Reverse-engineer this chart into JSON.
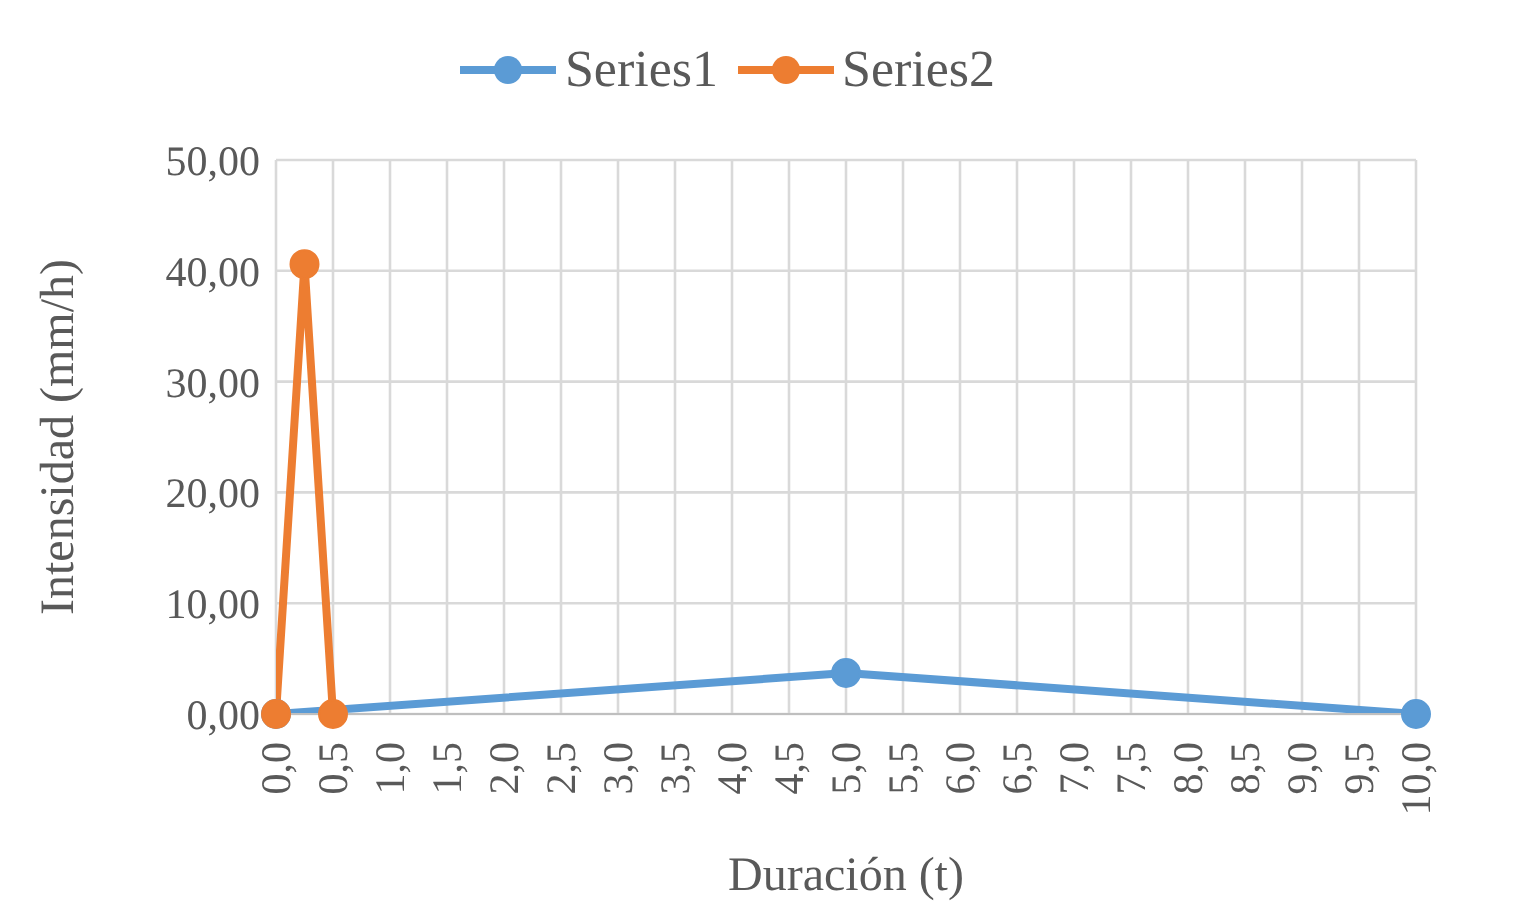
{
  "chart_data": {
    "type": "line",
    "xlabel": "Duración (t)",
    "ylabel": "Intensidad (mm/h)",
    "series": [
      {
        "name": "Series1",
        "color": "#5b9bd5",
        "x": [
          0,
          5,
          10
        ],
        "values": [
          0,
          3.7,
          0
        ]
      },
      {
        "name": "Series2",
        "color": "#ed7d31",
        "x": [
          0,
          0.25,
          0.5
        ],
        "values": [
          0,
          40.6,
          0
        ]
      }
    ],
    "xlim": [
      0,
      10
    ],
    "xticks": [
      {
        "value": 0,
        "label": "0,0"
      },
      {
        "value": 0.5,
        "label": "0,5"
      },
      {
        "value": 1,
        "label": "1,0"
      },
      {
        "value": 1.5,
        "label": "1,5"
      },
      {
        "value": 2,
        "label": "2,0"
      },
      {
        "value": 2.5,
        "label": "2,5"
      },
      {
        "value": 3,
        "label": "3,0"
      },
      {
        "value": 3.5,
        "label": "3,5"
      },
      {
        "value": 4,
        "label": "4,0"
      },
      {
        "value": 4.5,
        "label": "4,5"
      },
      {
        "value": 5,
        "label": "5,0"
      },
      {
        "value": 5.5,
        "label": "5,5"
      },
      {
        "value": 6,
        "label": "6,0"
      },
      {
        "value": 6.5,
        "label": "6,5"
      },
      {
        "value": 7,
        "label": "7,0"
      },
      {
        "value": 7.5,
        "label": "7,5"
      },
      {
        "value": 8,
        "label": "8,0"
      },
      {
        "value": 8.5,
        "label": "8,5"
      },
      {
        "value": 9,
        "label": "9,0"
      },
      {
        "value": 9.5,
        "label": "9,5"
      },
      {
        "value": 10,
        "label": "10,0"
      }
    ],
    "ylim": [
      0,
      50
    ],
    "yticks": [
      {
        "value": 0,
        "label": "0,00"
      },
      {
        "value": 10,
        "label": "10,00"
      },
      {
        "value": 20,
        "label": "20,00"
      },
      {
        "value": 30,
        "label": "30,00"
      },
      {
        "value": 40,
        "label": "40,00"
      },
      {
        "value": 50,
        "label": "50,00"
      }
    ],
    "grid": true,
    "legend": "top",
    "marker": "circle",
    "line_style": "solid"
  }
}
